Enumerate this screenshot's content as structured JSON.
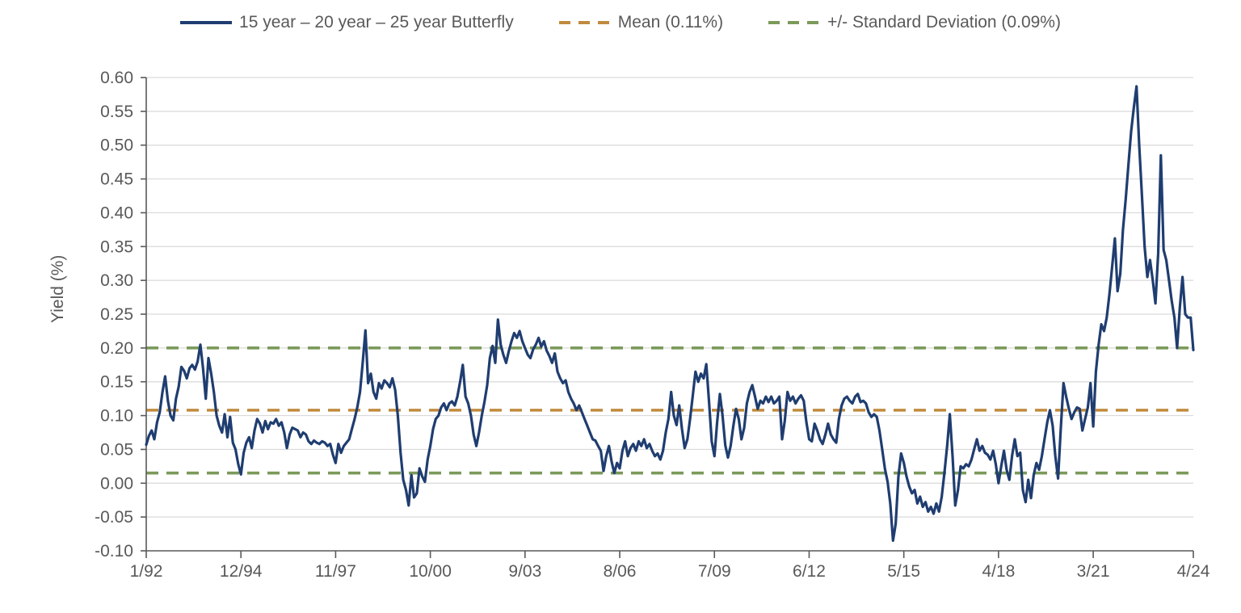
{
  "legend": [
    {
      "label": "15 year – 20 year – 25 year Butterfly",
      "color": "#1f3d70",
      "style": "solid"
    },
    {
      "label": "Mean (0.11%)",
      "color": "#c08b3e",
      "style": "dashed"
    },
    {
      "label": "+/- Standard Deviation (0.09%)",
      "color": "#7b9a5a",
      "style": "dashed"
    }
  ],
  "colors": {
    "series": "#1f3d70",
    "mean": "#c08b3e",
    "sd_band": "#7b9a5a",
    "grid": "#d9d9d9",
    "axis": "#595959",
    "text": "#595959"
  },
  "chart_data": {
    "type": "line",
    "ylabel": "Yield (%)",
    "ylim": [
      -0.1,
      0.6
    ],
    "grid": "horizontal",
    "legend_position": "top",
    "y_ticks": [
      {
        "label": "0.60",
        "value": 0.6
      },
      {
        "label": "0.55",
        "value": 0.55
      },
      {
        "label": "0.50",
        "value": 0.5
      },
      {
        "label": "0.45",
        "value": 0.45
      },
      {
        "label": "0.40",
        "value": 0.4
      },
      {
        "label": "0.35",
        "value": 0.35
      },
      {
        "label": "0.30",
        "value": 0.3
      },
      {
        "label": "0.25",
        "value": 0.25
      },
      {
        "label": "0.20",
        "value": 0.2
      },
      {
        "label": "0.15",
        "value": 0.15
      },
      {
        "label": "0.10",
        "value": 0.1
      },
      {
        "label": "0.05",
        "value": 0.05
      },
      {
        "label": "0.00",
        "value": 0.0
      },
      {
        "label": "-0.05",
        "value": -0.05
      },
      {
        "label": "-0.10",
        "value": -0.1
      }
    ],
    "x_ticks": [
      {
        "label": "1/92",
        "month_index": 0
      },
      {
        "label": "12/94",
        "month_index": 35
      },
      {
        "label": "11/97",
        "month_index": 70
      },
      {
        "label": "10/00",
        "month_index": 105
      },
      {
        "label": "9/03",
        "month_index": 140
      },
      {
        "label": "8/06",
        "month_index": 175
      },
      {
        "label": "7/09",
        "month_index": 210
      },
      {
        "label": "6/12",
        "month_index": 245
      },
      {
        "label": "5/15",
        "month_index": 280
      },
      {
        "label": "4/18",
        "month_index": 315
      },
      {
        "label": "3/21",
        "month_index": 350
      },
      {
        "label": "4/24",
        "month_index": 387
      }
    ],
    "reference_lines": [
      {
        "name": "mean",
        "label": "Mean (0.11%)",
        "value": 0.108,
        "color": "#c08b3e"
      },
      {
        "name": "upper-sd",
        "label": "+/- Standard Deviation (0.09%)",
        "value": 0.2,
        "color": "#7b9a5a"
      },
      {
        "name": "lower-sd",
        "label": "+/- Standard Deviation (0.09%)",
        "value": 0.015,
        "color": "#7b9a5a"
      }
    ],
    "series": [
      {
        "name": "15 year – 20 year – 25 year Butterfly",
        "color": "#1f3d70",
        "start_month": "1/92",
        "end_month": "4/24",
        "frequency": "monthly",
        "values": [
          0.057,
          0.07,
          0.078,
          0.065,
          0.09,
          0.105,
          0.135,
          0.158,
          0.122,
          0.1,
          0.093,
          0.125,
          0.143,
          0.172,
          0.166,
          0.155,
          0.17,
          0.175,
          0.168,
          0.18,
          0.205,
          0.17,
          0.125,
          0.185,
          0.162,
          0.135,
          0.1,
          0.085,
          0.075,
          0.102,
          0.068,
          0.098,
          0.06,
          0.05,
          0.028,
          0.013,
          0.045,
          0.06,
          0.068,
          0.052,
          0.078,
          0.095,
          0.088,
          0.075,
          0.092,
          0.08,
          0.09,
          0.088,
          0.095,
          0.085,
          0.09,
          0.075,
          0.052,
          0.072,
          0.082,
          0.08,
          0.078,
          0.068,
          0.075,
          0.072,
          0.062,
          0.058,
          0.063,
          0.06,
          0.058,
          0.062,
          0.06,
          0.055,
          0.058,
          0.042,
          0.03,
          0.058,
          0.045,
          0.055,
          0.06,
          0.065,
          0.08,
          0.095,
          0.112,
          0.135,
          0.178,
          0.226,
          0.148,
          0.162,
          0.135,
          0.125,
          0.148,
          0.14,
          0.152,
          0.148,
          0.142,
          0.155,
          0.138,
          0.1,
          0.045,
          0.005,
          -0.01,
          -0.033,
          0.012,
          -0.021,
          -0.015,
          0.022,
          0.01,
          0.002,
          0.035,
          0.055,
          0.08,
          0.095,
          0.1,
          0.112,
          0.118,
          0.108,
          0.118,
          0.121,
          0.115,
          0.128,
          0.15,
          0.175,
          0.128,
          0.118,
          0.1,
          0.072,
          0.055,
          0.075,
          0.1,
          0.12,
          0.145,
          0.185,
          0.203,
          0.178,
          0.242,
          0.205,
          0.19,
          0.178,
          0.195,
          0.21,
          0.222,
          0.215,
          0.225,
          0.21,
          0.2,
          0.19,
          0.185,
          0.198,
          0.205,
          0.215,
          0.202,
          0.21,
          0.196,
          0.188,
          0.178,
          0.192,
          0.165,
          0.155,
          0.148,
          0.152,
          0.135,
          0.125,
          0.118,
          0.108,
          0.115,
          0.105,
          0.095,
          0.085,
          0.075,
          0.065,
          0.063,
          0.055,
          0.048,
          0.018,
          0.04,
          0.055,
          0.032,
          0.015,
          0.03,
          0.022,
          0.048,
          0.062,
          0.04,
          0.052,
          0.058,
          0.048,
          0.062,
          0.055,
          0.065,
          0.052,
          0.058,
          0.048,
          0.04,
          0.044,
          0.035,
          0.048,
          0.075,
          0.095,
          0.135,
          0.1,
          0.086,
          0.115,
          0.08,
          0.052,
          0.065,
          0.095,
          0.13,
          0.165,
          0.15,
          0.162,
          0.155,
          0.176,
          0.12,
          0.062,
          0.04,
          0.09,
          0.132,
          0.1,
          0.056,
          0.038,
          0.055,
          0.085,
          0.11,
          0.095,
          0.065,
          0.082,
          0.118,
          0.135,
          0.145,
          0.128,
          0.11,
          0.122,
          0.118,
          0.128,
          0.12,
          0.128,
          0.118,
          0.122,
          0.128,
          0.065,
          0.092,
          0.135,
          0.122,
          0.128,
          0.118,
          0.125,
          0.13,
          0.122,
          0.09,
          0.065,
          0.062,
          0.088,
          0.078,
          0.065,
          0.058,
          0.072,
          0.088,
          0.072,
          0.065,
          0.06,
          0.095,
          0.115,
          0.125,
          0.128,
          0.122,
          0.118,
          0.128,
          0.132,
          0.12,
          0.122,
          0.118,
          0.105,
          0.098,
          0.102,
          0.098,
          0.078,
          0.05,
          0.022,
          0.002,
          -0.03,
          -0.085,
          -0.06,
          0.01,
          0.044,
          0.03,
          0.01,
          -0.005,
          -0.015,
          -0.01,
          -0.03,
          -0.02,
          -0.035,
          -0.028,
          -0.042,
          -0.035,
          -0.045,
          -0.03,
          -0.042,
          -0.02,
          0.015,
          0.055,
          0.102,
          0.04,
          -0.033,
          -0.01,
          0.025,
          0.022,
          0.028,
          0.025,
          0.035,
          0.05,
          0.065,
          0.048,
          0.055,
          0.045,
          0.042,
          0.035,
          0.048,
          0.028,
          0.0,
          0.025,
          0.048,
          0.02,
          0.005,
          0.04,
          0.065,
          0.04,
          0.045,
          -0.01,
          -0.028,
          0.005,
          -0.022,
          0.012,
          0.03,
          0.02,
          0.04,
          0.065,
          0.09,
          0.108,
          0.085,
          0.04,
          0.007,
          0.08,
          0.148,
          0.128,
          0.11,
          0.095,
          0.105,
          0.112,
          0.11,
          0.078,
          0.095,
          0.112,
          0.148,
          0.084,
          0.165,
          0.205,
          0.235,
          0.225,
          0.245,
          0.28,
          0.32,
          0.362,
          0.284,
          0.31,
          0.375,
          0.42,
          0.47,
          0.52,
          0.555,
          0.587,
          0.5,
          0.425,
          0.35,
          0.305,
          0.33,
          0.3,
          0.266,
          0.34,
          0.485,
          0.345,
          0.33,
          0.3,
          0.27,
          0.245,
          0.2,
          0.26,
          0.305,
          0.25,
          0.245,
          0.245,
          0.197
        ]
      }
    ]
  }
}
